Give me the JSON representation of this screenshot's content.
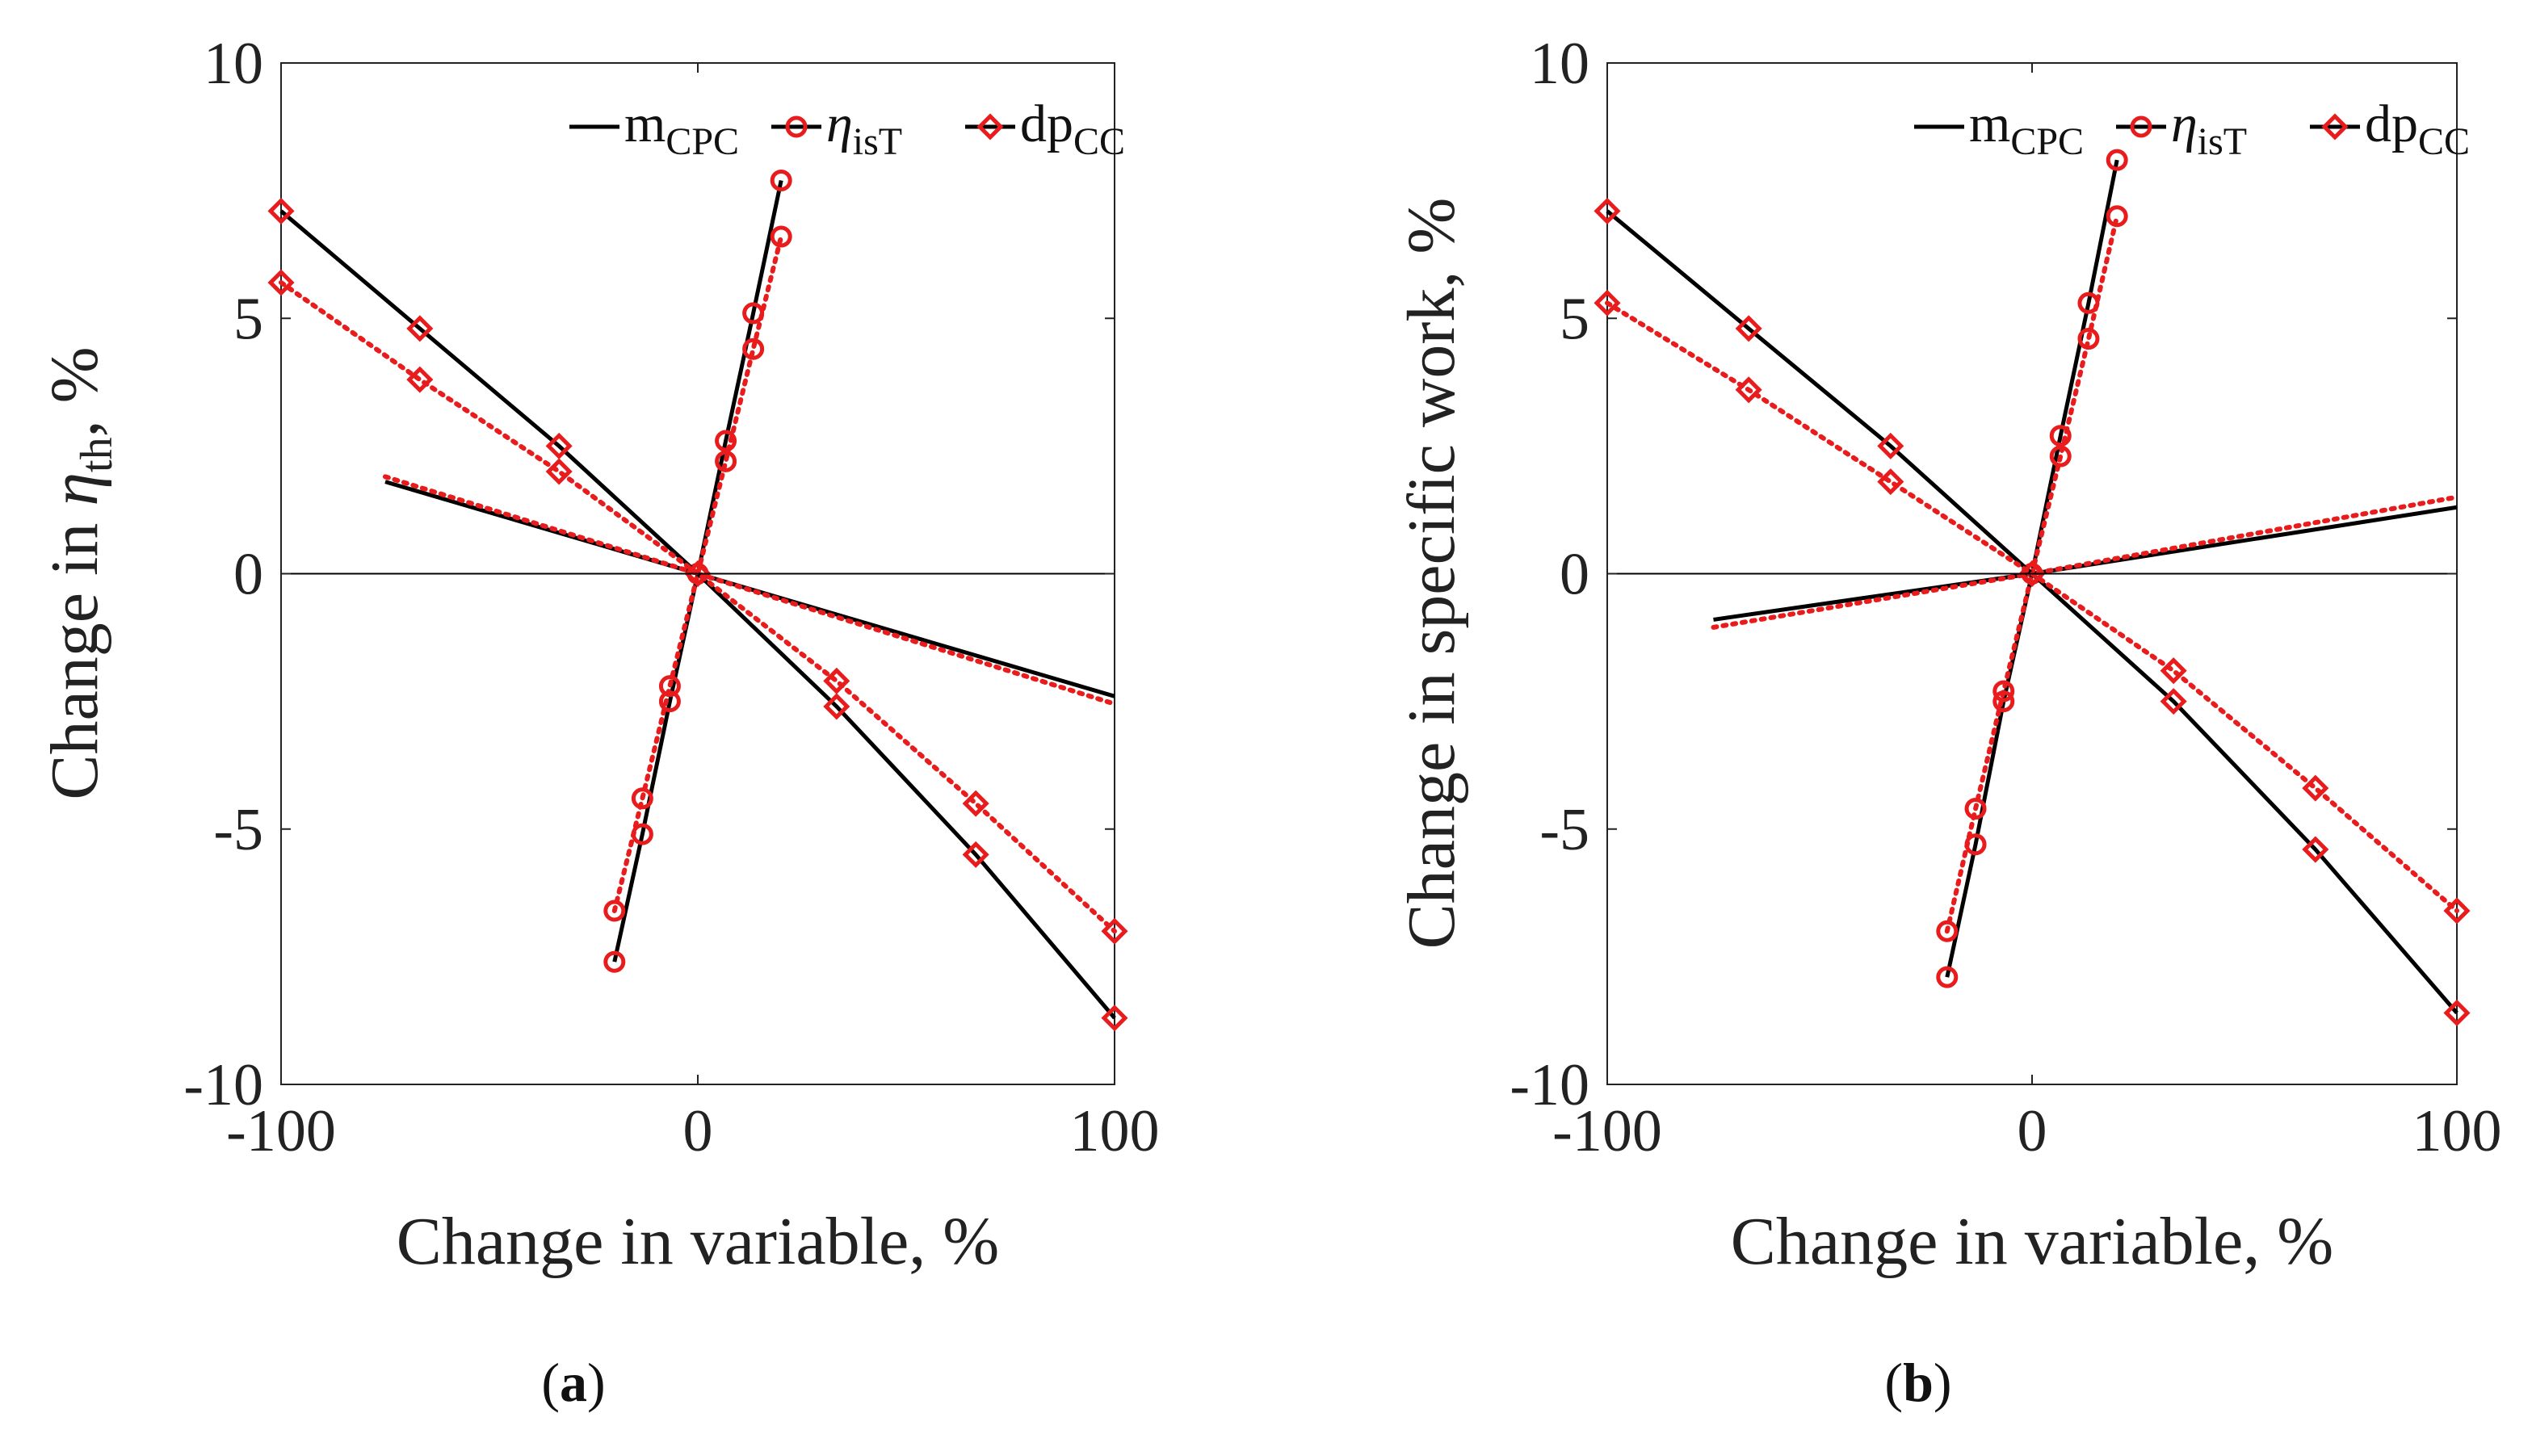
{
  "figure": {
    "panel_labels": [
      {
        "open": "(",
        "letter": "a",
        "close": ")"
      },
      {
        "open": "(",
        "letter": "b",
        "close": ")"
      }
    ]
  },
  "colors": {
    "black": "#000000",
    "red": "#e81c1c",
    "axis": "#222222"
  },
  "chart_data": [
    {
      "type": "line",
      "xlabel": "Change in variable, %",
      "ylabel_parts": {
        "pre": "Change in ",
        "symbol": "η",
        "sub": "th",
        "post": ", %"
      },
      "xlim": [
        -100,
        100
      ],
      "ylim": [
        -10,
        10
      ],
      "xticks": [
        {
          "value": -100,
          "label": "-100"
        },
        {
          "value": 0,
          "label": "0"
        },
        {
          "value": 100,
          "label": "100"
        }
      ],
      "yticks": [
        {
          "value": -10,
          "label": "-10"
        },
        {
          "value": -5,
          "label": "-5"
        },
        {
          "value": 0,
          "label": "0"
        },
        {
          "value": 5,
          "label": "5"
        },
        {
          "value": 10,
          "label": "10"
        }
      ],
      "legend": {
        "position": "top-right",
        "entries": [
          {
            "main": "m",
            "sub": "CPC",
            "marker": "none"
          },
          {
            "main": "η",
            "sub": "isT",
            "marker": "circle"
          },
          {
            "main": "dp",
            "sub": "CC",
            "marker": "diamond"
          }
        ]
      },
      "series": [
        {
          "name": "m_CPC",
          "style": "solid-black",
          "marker": "none",
          "x": [
            -75,
            0,
            100
          ],
          "y": [
            1.8,
            0,
            -2.4
          ]
        },
        {
          "name": "m_CPC",
          "style": "dotted-red",
          "marker": "none",
          "x": [
            -75,
            0,
            100
          ],
          "y": [
            1.9,
            0,
            -2.55
          ]
        },
        {
          "name": "eta_isT",
          "style": "solid-black",
          "marker": "circle",
          "x": [
            -20,
            -13.3,
            -6.7,
            0,
            6.7,
            13.3,
            20
          ],
          "y": [
            -7.6,
            -5.1,
            -2.5,
            0,
            2.6,
            5.1,
            7.7
          ]
        },
        {
          "name": "eta_isT",
          "style": "dotted-red",
          "marker": "circle",
          "x": [
            -20,
            -13.3,
            -6.7,
            0,
            6.7,
            13.3,
            20
          ],
          "y": [
            -6.6,
            -4.4,
            -2.2,
            0,
            2.2,
            4.4,
            6.6
          ]
        },
        {
          "name": "dp_CC",
          "style": "solid-black",
          "marker": "diamond",
          "x": [
            -100,
            -66.7,
            -33.3,
            0,
            33.3,
            66.7,
            100
          ],
          "y": [
            7.1,
            4.8,
            2.5,
            0,
            -2.6,
            -5.5,
            -8.7
          ]
        },
        {
          "name": "dp_CC",
          "style": "dotted-red",
          "marker": "diamond",
          "x": [
            -100,
            -66.7,
            -33.3,
            0,
            33.3,
            66.7,
            100
          ],
          "y": [
            5.7,
            3.8,
            2.0,
            0,
            -2.1,
            -4.5,
            -7.0
          ]
        }
      ]
    },
    {
      "type": "line",
      "xlabel": "Change in variable, %",
      "ylabel_parts": {
        "pre": "Change in specific work, %",
        "symbol": "",
        "sub": "",
        "post": ""
      },
      "xlim": [
        -100,
        100
      ],
      "ylim": [
        -10,
        10
      ],
      "xticks": [
        {
          "value": -100,
          "label": "-100"
        },
        {
          "value": 0,
          "label": "0"
        },
        {
          "value": 100,
          "label": "100"
        }
      ],
      "yticks": [
        {
          "value": -10,
          "label": "-10"
        },
        {
          "value": -5,
          "label": "-5"
        },
        {
          "value": 0,
          "label": "0"
        },
        {
          "value": 5,
          "label": "5"
        },
        {
          "value": 10,
          "label": "10"
        }
      ],
      "legend": {
        "position": "top-right",
        "entries": [
          {
            "main": "m",
            "sub": "CPC",
            "marker": "none"
          },
          {
            "main": "η",
            "sub": "isT",
            "marker": "circle"
          },
          {
            "main": "dp",
            "sub": "CC",
            "marker": "diamond"
          }
        ]
      },
      "series": [
        {
          "name": "m_CPC",
          "style": "solid-black",
          "marker": "none",
          "x": [
            -75,
            0,
            100
          ],
          "y": [
            -0.9,
            0,
            1.3
          ]
        },
        {
          "name": "m_CPC",
          "style": "dotted-red",
          "marker": "none",
          "x": [
            -75,
            0,
            100
          ],
          "y": [
            -1.05,
            0,
            1.5
          ]
        },
        {
          "name": "eta_isT",
          "style": "solid-black",
          "marker": "circle",
          "x": [
            -20,
            -13.3,
            -6.7,
            0,
            6.7,
            13.3,
            20
          ],
          "y": [
            -7.9,
            -5.3,
            -2.5,
            0,
            2.7,
            5.3,
            8.1
          ]
        },
        {
          "name": "eta_isT",
          "style": "dotted-red",
          "marker": "circle",
          "x": [
            -20,
            -13.3,
            -6.7,
            0,
            6.7,
            13.3,
            20
          ],
          "y": [
            -7.0,
            -4.6,
            -2.3,
            0,
            2.3,
            4.6,
            7.0
          ]
        },
        {
          "name": "dp_CC",
          "style": "solid-black",
          "marker": "diamond",
          "x": [
            -100,
            -66.7,
            -33.3,
            0,
            33.3,
            66.7,
            100
          ],
          "y": [
            7.1,
            4.8,
            2.5,
            0,
            -2.5,
            -5.4,
            -8.6
          ]
        },
        {
          "name": "dp_CC",
          "style": "dotted-red",
          "marker": "diamond",
          "x": [
            -100,
            -66.7,
            -33.3,
            0,
            33.3,
            66.7,
            100
          ],
          "y": [
            5.3,
            3.6,
            1.8,
            0,
            -1.9,
            -4.2,
            -6.6
          ]
        }
      ]
    }
  ]
}
